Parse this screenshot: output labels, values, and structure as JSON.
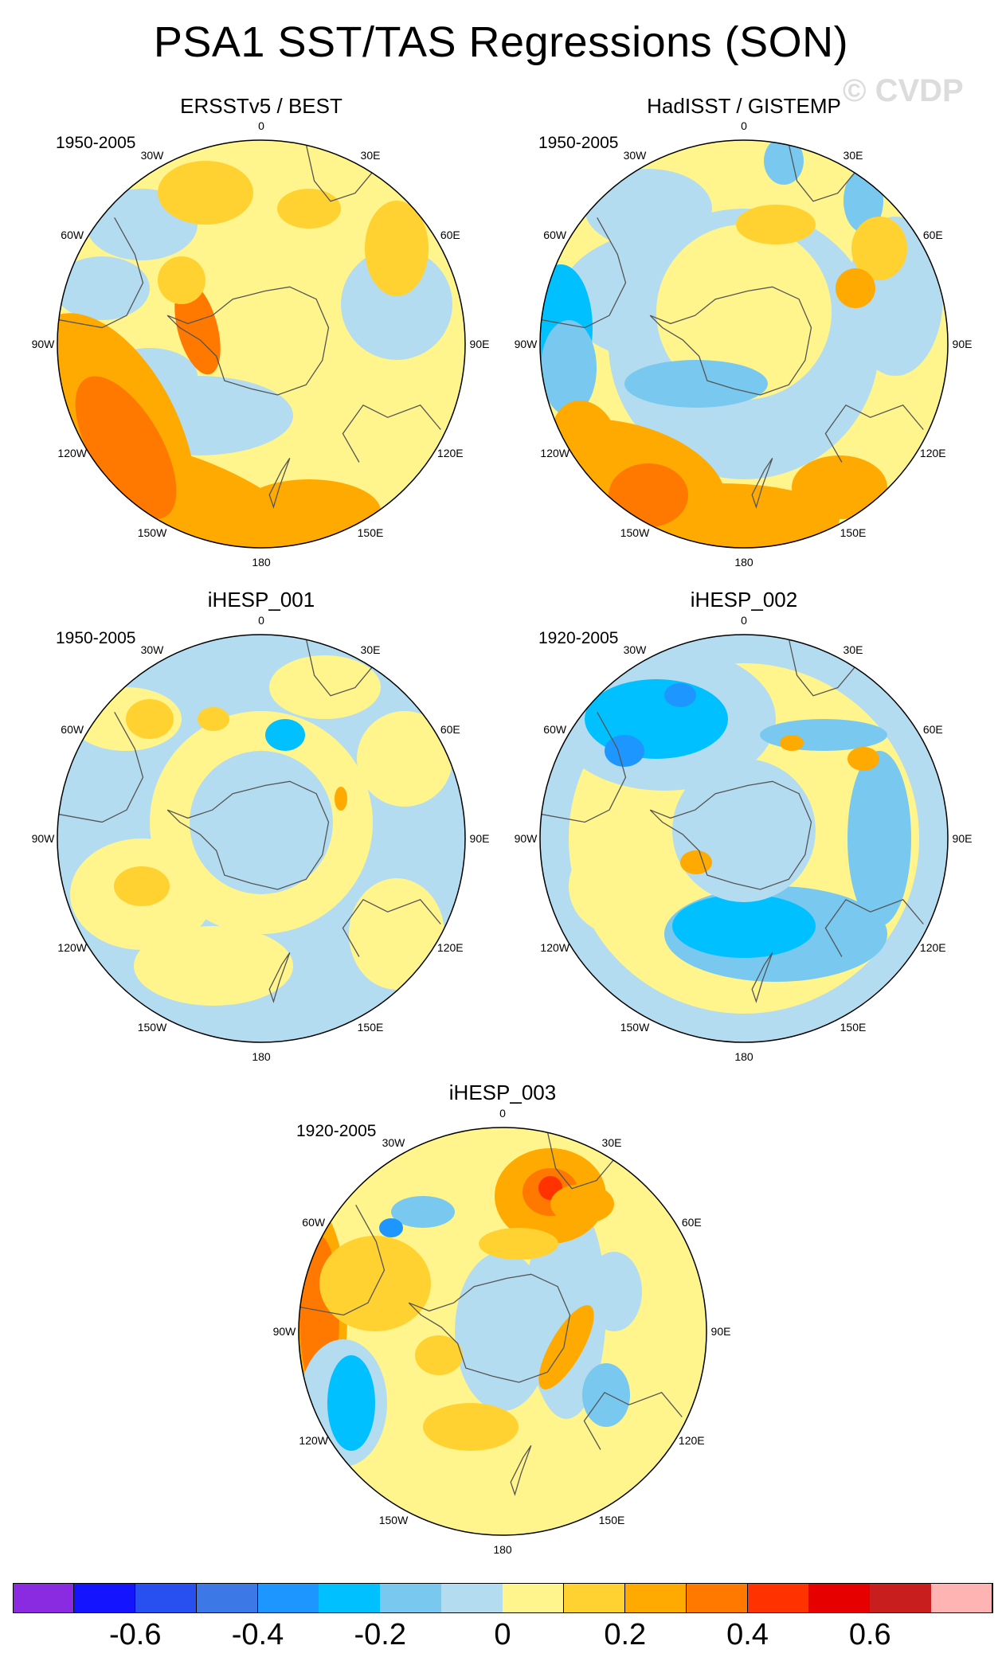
{
  "title": "PSA1 SST/TAS Regressions (SON)",
  "watermark": "© CVDP",
  "panels": [
    {
      "id": "p1",
      "title": "ERSSTv5 / BEST",
      "period": "1950-2005"
    },
    {
      "id": "p2",
      "title": "HadISST / GISTEMP",
      "period": "1950-2005"
    },
    {
      "id": "p3",
      "title": "iHESP_001",
      "period": "1950-2005"
    },
    {
      "id": "p4",
      "title": "iHESP_002",
      "period": "1920-2005"
    },
    {
      "id": "p5",
      "title": "iHESP_003",
      "period": "1920-2005"
    }
  ],
  "lon_labels": [
    "0",
    "30E",
    "60E",
    "90E",
    "120E",
    "150E",
    "180",
    "150W",
    "120W",
    "90W",
    "60W",
    "30W"
  ],
  "chart_data": {
    "type": "heatmap",
    "projection": "south-polar-stereographic",
    "title": "PSA1 SST/TAS Regressions (SON)",
    "colorbar": {
      "levels": [
        -0.7,
        -0.6,
        -0.5,
        -0.4,
        -0.3,
        -0.2,
        -0.1,
        0,
        0.1,
        0.2,
        0.3,
        0.4,
        0.5,
        0.6,
        0.7
      ],
      "tick_labels": [
        "-0.6",
        "-0.4",
        "-0.2",
        "0",
        "0.2",
        "0.4",
        "0.6"
      ],
      "tick_values": [
        -0.6,
        -0.4,
        -0.2,
        0,
        0.2,
        0.4,
        0.6
      ],
      "colors": [
        "#8a2be2",
        "#1414ff",
        "#2850f0",
        "#3c78e6",
        "#1e96ff",
        "#00c0ff",
        "#78c8f0",
        "#b4dcf0",
        "#fff58c",
        "#ffd232",
        "#ffaa00",
        "#ff7800",
        "#ff3200",
        "#e60000",
        "#c81e1e",
        "#ffb4b4"
      ]
    },
    "panels": [
      {
        "title": "ERSSTv5 / BEST",
        "period": "1950-2005"
      },
      {
        "title": "HadISST / GISTEMP",
        "period": "1950-2005"
      },
      {
        "title": "iHESP_001",
        "period": "1950-2005"
      },
      {
        "title": "iHESP_002",
        "period": "1920-2005"
      },
      {
        "title": "iHESP_003",
        "period": "1920-2005"
      }
    ]
  }
}
